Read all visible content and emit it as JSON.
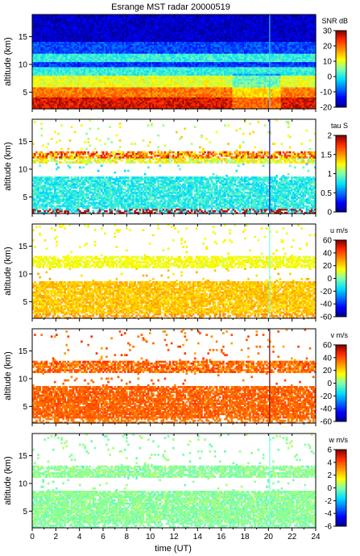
{
  "title": "Esrange MST radar 20000519",
  "x_axis": {
    "label": "time (UT)",
    "range": [
      0,
      24
    ],
    "ticks": [
      0,
      2,
      4,
      6,
      8,
      10,
      12,
      14,
      16,
      18,
      20,
      22,
      24
    ]
  },
  "panels": [
    {
      "id": "snr",
      "ylabel": "altitude (km)",
      "yrange": [
        2,
        19
      ],
      "yticks": [
        5,
        10,
        15
      ],
      "cbar_label": "SNR dB",
      "cbar_range": [
        -20,
        30
      ],
      "cbar_ticks": [
        30,
        20,
        10,
        0,
        -10,
        -20
      ]
    },
    {
      "id": "tau",
      "ylabel": "altitude (km)",
      "yrange": [
        2,
        19
      ],
      "yticks": [
        5,
        10,
        15
      ],
      "cbar_label": "tau S",
      "cbar_range": [
        0,
        2
      ],
      "cbar_ticks": [
        "2",
        "1.5",
        "1",
        "0.5",
        "0"
      ]
    },
    {
      "id": "u",
      "ylabel": "altitude (km)",
      "yrange": [
        2,
        19
      ],
      "yticks": [
        5,
        10,
        15
      ],
      "cbar_label": "u m/s",
      "cbar_range": [
        -60,
        60
      ],
      "cbar_ticks": [
        60,
        40,
        20,
        0,
        -20,
        -40,
        -60
      ]
    },
    {
      "id": "v",
      "ylabel": "altitude (km)",
      "yrange": [
        2,
        19
      ],
      "yticks": [
        5,
        10,
        15
      ],
      "cbar_label": "v m/s",
      "cbar_range": [
        -60,
        60
      ],
      "cbar_ticks": [
        60,
        40,
        20,
        0,
        -20,
        -40,
        -60
      ]
    },
    {
      "id": "w",
      "ylabel": "altitude (km)",
      "yrange": [
        2,
        19
      ],
      "yticks": [
        5,
        10,
        15
      ],
      "cbar_label": "w m/s",
      "cbar_range": [
        -6,
        6
      ],
      "cbar_ticks": [
        6,
        4,
        2,
        0,
        -2,
        -4,
        -6
      ]
    }
  ],
  "chart_data": [
    {
      "type": "heatmap",
      "name": "SNR",
      "x_range_hours": [
        0,
        24
      ],
      "y_range_km": [
        2,
        19
      ],
      "approx_profile": [
        {
          "altitude_km": 3,
          "value_dB": 27
        },
        {
          "altitude_km": 5,
          "value_dB": 18
        },
        {
          "altitude_km": 7,
          "value_dB": 9
        },
        {
          "altitude_km": 9,
          "value_dB": 0
        },
        {
          "altitude_km": 10,
          "value_dB": -10
        },
        {
          "altitude_km": 11,
          "value_dB": 2
        },
        {
          "altitude_km": 13,
          "value_dB": -10
        },
        {
          "altitude_km": 16,
          "value_dB": -17
        },
        {
          "altitude_km": 18,
          "value_dB": -19
        }
      ]
    },
    {
      "type": "heatmap",
      "name": "tau",
      "x_range_hours": [
        0,
        24
      ],
      "y_range_km": [
        2,
        19
      ],
      "approx_profile": [
        {
          "altitude_km": 3,
          "value_s": 0.65
        },
        {
          "altitude_km": 5,
          "value_s": 0.8
        },
        {
          "altitude_km": 7,
          "value_s": 0.85
        },
        {
          "altitude_km": 11.5,
          "value_s": 1.1
        },
        {
          "altitude_km": 12.5,
          "value_s": 1.7
        }
      ]
    },
    {
      "type": "heatmap",
      "name": "u",
      "x_range_hours": [
        0,
        24
      ],
      "y_range_km": [
        2,
        19
      ],
      "approx_profile": [
        {
          "altitude_km": 4,
          "value_ms": 22
        },
        {
          "altitude_km": 6,
          "value_ms": 25
        },
        {
          "altitude_km": 11.5,
          "value_ms": 15
        },
        {
          "altitude_km": 13,
          "value_ms": 12
        }
      ]
    },
    {
      "type": "heatmap",
      "name": "v",
      "x_range_hours": [
        0,
        24
      ],
      "y_range_km": [
        2,
        19
      ],
      "approx_profile": [
        {
          "altitude_km": 4,
          "value_ms": 35
        },
        {
          "altitude_km": 6,
          "value_ms": 36
        },
        {
          "altitude_km": 11,
          "value_ms": 38
        },
        {
          "altitude_km": 12,
          "value_ms": 28
        }
      ]
    },
    {
      "type": "heatmap",
      "name": "w",
      "x_range_hours": [
        0,
        24
      ],
      "y_range_km": [
        2,
        19
      ],
      "approx_profile": [
        {
          "altitude_km": 4,
          "value_ms": 0.6
        },
        {
          "altitude_km": 6,
          "value_ms": 0.4
        },
        {
          "altitude_km": 11.5,
          "value_ms": 0.8
        }
      ]
    }
  ]
}
